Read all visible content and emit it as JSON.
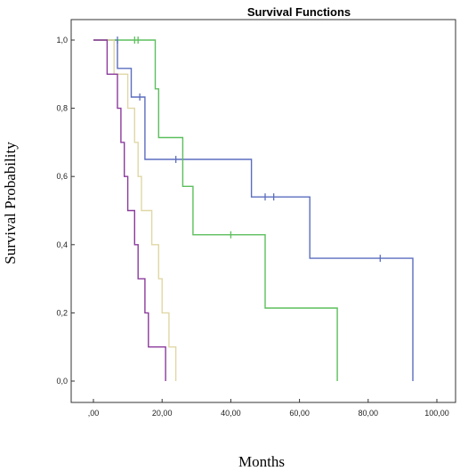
{
  "chart_data": {
    "type": "line",
    "title": "Survival Functions",
    "xlabel": "Months",
    "ylabel": "Survival Probability",
    "xlim": [
      0,
      100
    ],
    "ylim": [
      0,
      1
    ],
    "xticks": [
      ",00",
      "20,00",
      "40,00",
      "60,00",
      "80,00",
      "100,00"
    ],
    "yticks": [
      "0,0",
      "0,2",
      "0,4",
      "0,6",
      "0,8",
      "1,0"
    ],
    "grid": false,
    "legend": "none",
    "series": [
      {
        "color": "#5b6dbf",
        "steps": [
          [
            0,
            1.0
          ],
          [
            7,
            1.0
          ],
          [
            7,
            0.917
          ],
          [
            11,
            0.917
          ],
          [
            11,
            0.833
          ],
          [
            15,
            0.833
          ],
          [
            15,
            0.65
          ],
          [
            46,
            0.65
          ],
          [
            46,
            0.54
          ],
          [
            63,
            0.54
          ],
          [
            63,
            0.36
          ],
          [
            93,
            0.36
          ],
          [
            93,
            0.0
          ]
        ],
        "censored": [
          [
            7,
            1.0
          ],
          [
            13.5,
            0.833
          ],
          [
            24,
            0.65
          ],
          [
            50,
            0.54
          ],
          [
            52.5,
            0.54
          ],
          [
            83.5,
            0.36
          ]
        ]
      },
      {
        "color": "#5cbf5c",
        "steps": [
          [
            0,
            1.0
          ],
          [
            18,
            1.0
          ],
          [
            18,
            0.857
          ],
          [
            19,
            0.857
          ],
          [
            19,
            0.714
          ],
          [
            26,
            0.714
          ],
          [
            26,
            0.571
          ],
          [
            29,
            0.571
          ],
          [
            29,
            0.429
          ],
          [
            50,
            0.429
          ],
          [
            50,
            0.214
          ],
          [
            71,
            0.214
          ],
          [
            71,
            0.0
          ]
        ],
        "censored": [
          [
            12,
            1.0
          ],
          [
            13,
            1.0
          ],
          [
            40,
            0.429
          ]
        ]
      },
      {
        "color": "#e0d7a5",
        "steps": [
          [
            0,
            1.0
          ],
          [
            6,
            1.0
          ],
          [
            6,
            0.9
          ],
          [
            10,
            0.9
          ],
          [
            10,
            0.8
          ],
          [
            12,
            0.8
          ],
          [
            12,
            0.7
          ],
          [
            13,
            0.7
          ],
          [
            13,
            0.6
          ],
          [
            14,
            0.6
          ],
          [
            14,
            0.5
          ],
          [
            17,
            0.5
          ],
          [
            17,
            0.4
          ],
          [
            19,
            0.4
          ],
          [
            19,
            0.3
          ],
          [
            20,
            0.3
          ],
          [
            20,
            0.2
          ],
          [
            22,
            0.2
          ],
          [
            22,
            0.1
          ],
          [
            24,
            0.1
          ],
          [
            24,
            0.0
          ]
        ],
        "censored": []
      },
      {
        "color": "#8b3a9c",
        "steps": [
          [
            0,
            1.0
          ],
          [
            4,
            1.0
          ],
          [
            4,
            0.9
          ],
          [
            7,
            0.9
          ],
          [
            7,
            0.8
          ],
          [
            8,
            0.8
          ],
          [
            8,
            0.7
          ],
          [
            9,
            0.7
          ],
          [
            9,
            0.6
          ],
          [
            10,
            0.6
          ],
          [
            10,
            0.5
          ],
          [
            12,
            0.5
          ],
          [
            12,
            0.4
          ],
          [
            13,
            0.4
          ],
          [
            13,
            0.3
          ],
          [
            15,
            0.3
          ],
          [
            15,
            0.2
          ],
          [
            16,
            0.2
          ],
          [
            16,
            0.1
          ],
          [
            21,
            0.1
          ],
          [
            21,
            0.0
          ]
        ],
        "censored": []
      }
    ]
  }
}
